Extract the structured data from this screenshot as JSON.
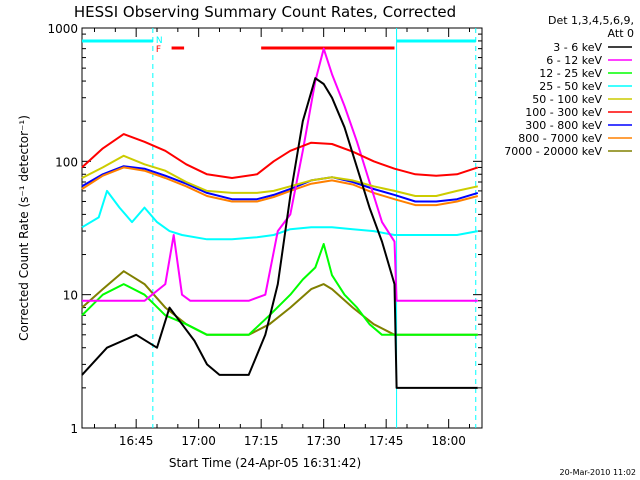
{
  "chart_data": {
    "type": "line",
    "title": "HESSI Observing Summary Count Rates, Corrected",
    "xlabel": "Start Time (24-Apr-05 16:31:42)",
    "ylabel": "Corrected Count Rate (s⁻¹ detector⁻¹)",
    "yscale": "log",
    "ylim": [
      1,
      1000
    ],
    "xlim_min": [
      0,
      96
    ],
    "x_ticks": [
      {
        "min": 13,
        "label": "16:45"
      },
      {
        "min": 28,
        "label": "17:00"
      },
      {
        "min": 43,
        "label": "17:15"
      },
      {
        "min": 58,
        "label": "17:30"
      },
      {
        "min": 73,
        "label": "17:45"
      },
      {
        "min": 88,
        "label": "18:00"
      }
    ],
    "y_ticks": [
      {
        "value": 1,
        "label": "1"
      },
      {
        "value": 10,
        "label": "10"
      },
      {
        "value": 100,
        "label": "100"
      },
      {
        "value": 1000,
        "label": "1000"
      }
    ],
    "legend_header": [
      "Det 1,3,4,5,6,9,",
      "Att 0"
    ],
    "legend_position": "right",
    "series": [
      {
        "name": "3 - 6 keV",
        "color": "#000000",
        "x": [
          0,
          6,
          13,
          18,
          21,
          24,
          27,
          30,
          33,
          37,
          40,
          44,
          47,
          50,
          53,
          56,
          58,
          60,
          63,
          66,
          69,
          72,
          75,
          75.5,
          80,
          85,
          90,
          95
        ],
        "y": [
          2.5,
          4,
          5,
          4,
          8,
          6,
          4.5,
          3,
          2.5,
          2.5,
          2.5,
          5,
          12,
          55,
          200,
          420,
          380,
          300,
          180,
          90,
          45,
          25,
          12,
          2,
          2,
          2,
          2,
          2
        ]
      },
      {
        "name": "6 - 12 keV",
        "color": "#ff00ff",
        "x": [
          0,
          5,
          10,
          15,
          20,
          22,
          24,
          26,
          30,
          35,
          40,
          44,
          47,
          50,
          53,
          56,
          58,
          60,
          63,
          66,
          69,
          72,
          75,
          75.5,
          80,
          85,
          90,
          95
        ],
        "y": [
          9,
          9,
          9,
          9,
          12,
          28,
          10,
          9,
          9,
          9,
          9,
          10,
          30,
          40,
          120,
          400,
          700,
          450,
          260,
          140,
          70,
          35,
          25,
          9,
          9,
          9,
          9,
          9
        ]
      },
      {
        "name": "12 - 25 keV",
        "color": "#00ff00",
        "x": [
          0,
          5,
          10,
          15,
          20,
          25,
          30,
          35,
          40,
          45,
          50,
          53,
          56,
          58,
          60,
          63,
          66,
          69,
          72,
          75,
          80,
          85,
          90,
          95
        ],
        "y": [
          7,
          10,
          12,
          10,
          7,
          6,
          5,
          5,
          5,
          7,
          10,
          13,
          16,
          24,
          14,
          10,
          8,
          6,
          5,
          5,
          5,
          5,
          5,
          5
        ]
      },
      {
        "name": "25 - 50 keV",
        "color": "#00ffff",
        "x": [
          0,
          4,
          6,
          9,
          12,
          15,
          18,
          21,
          24,
          30,
          36,
          42,
          46,
          50,
          55,
          60,
          65,
          70,
          75,
          80,
          85,
          90,
          95
        ],
        "y": [
          32,
          38,
          60,
          45,
          35,
          45,
          35,
          30,
          28,
          26,
          26,
          27,
          28,
          31,
          32,
          32,
          31,
          30,
          28,
          28,
          28,
          28,
          30
        ]
      },
      {
        "name": "50 - 100 keV",
        "color": "#cccc00",
        "x": [
          0,
          5,
          10,
          15,
          20,
          25,
          30,
          36,
          42,
          46,
          50,
          55,
          60,
          65,
          70,
          75,
          80,
          85,
          90,
          95
        ],
        "y": [
          75,
          90,
          110,
          95,
          85,
          70,
          60,
          58,
          58,
          60,
          65,
          72,
          76,
          72,
          65,
          60,
          55,
          55,
          60,
          65
        ]
      },
      {
        "name": "100 - 300 keV",
        "color": "#ff0000",
        "x": [
          0,
          5,
          10,
          15,
          20,
          25,
          30,
          36,
          42,
          46,
          50,
          55,
          60,
          65,
          70,
          75,
          80,
          85,
          90,
          95
        ],
        "y": [
          90,
          125,
          160,
          140,
          120,
          95,
          80,
          75,
          80,
          100,
          120,
          138,
          135,
          118,
          100,
          88,
          80,
          78,
          80,
          90
        ]
      },
      {
        "name": "300 - 800 keV",
        "color": "#0000ff",
        "x": [
          0,
          5,
          10,
          15,
          20,
          25,
          30,
          36,
          42,
          46,
          50,
          55,
          60,
          65,
          70,
          75,
          80,
          85,
          90,
          95
        ],
        "y": [
          65,
          80,
          92,
          88,
          78,
          68,
          58,
          52,
          52,
          56,
          62,
          72,
          76,
          70,
          62,
          56,
          50,
          50,
          52,
          58
        ]
      },
      {
        "name": "800 - 7000 keV",
        "color": "#ff8000",
        "x": [
          0,
          5,
          10,
          15,
          20,
          25,
          30,
          36,
          42,
          46,
          50,
          55,
          60,
          65,
          70,
          75,
          80,
          85,
          90,
          95
        ],
        "y": [
          62,
          78,
          90,
          85,
          75,
          65,
          55,
          50,
          50,
          54,
          60,
          68,
          72,
          67,
          58,
          52,
          47,
          47,
          50,
          55
        ]
      },
      {
        "name": "7000 - 20000 keV",
        "color": "#808000",
        "x": [
          0,
          5,
          10,
          15,
          20,
          25,
          30,
          35,
          40,
          45,
          50,
          55,
          58,
          60,
          65,
          70,
          75,
          80,
          85,
          90,
          95
        ],
        "y": [
          8,
          11,
          15,
          12,
          8,
          6,
          5,
          5,
          5,
          6,
          8,
          11,
          12,
          11,
          8,
          6,
          5,
          5,
          5,
          5,
          5
        ]
      }
    ],
    "annotations": [
      {
        "label": "N",
        "color": "#00ffff"
      },
      {
        "label": "F",
        "color": "#ff0000"
      }
    ],
    "footer_timestamp": "20-Mar-2010 11:02"
  }
}
